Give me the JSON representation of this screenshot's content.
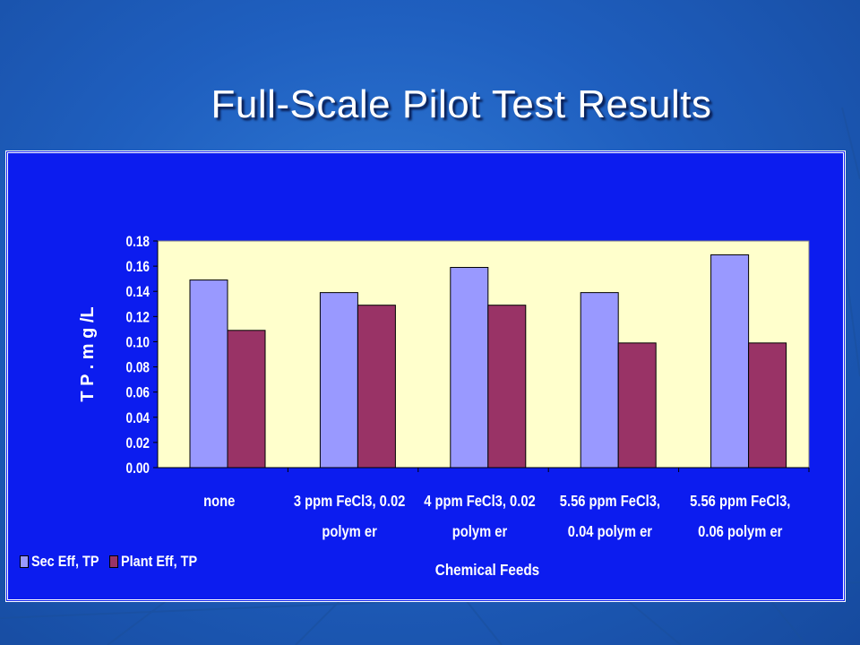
{
  "slide": {
    "title": "Full-Scale Pilot Test Results"
  },
  "chart_data": {
    "type": "bar",
    "title": "",
    "xlabel": "Chemical Feeds",
    "ylabel": "T P . m g /L",
    "ylim": [
      0,
      0.18
    ],
    "yticks": [
      "0.00",
      "0.02",
      "0.04",
      "0.06",
      "0.08",
      "0.10",
      "0.12",
      "0.14",
      "0.16",
      "0.18"
    ],
    "categories": [
      [
        "none"
      ],
      [
        "3 ppm FeCl3, 0.02",
        "polym er"
      ],
      [
        "4 ppm FeCl3, 0.02",
        "polym er"
      ],
      [
        "5.56 ppm FeCl3,",
        "0.04 polym er"
      ],
      [
        "5.56 ppm FeCl3,",
        "0.06 polym er"
      ]
    ],
    "series": [
      {
        "name": "Sec Eff, TP",
        "values": [
          0.149,
          0.139,
          0.159,
          0.139,
          0.169
        ],
        "color": "#9999ff"
      },
      {
        "name": "Plant Eff, TP",
        "values": [
          0.109,
          0.129,
          0.129,
          0.099,
          0.099
        ],
        "color": "#993366"
      }
    ],
    "plot_background": "#ffffcc",
    "legend_position": "bottom-left",
    "grid": false
  }
}
